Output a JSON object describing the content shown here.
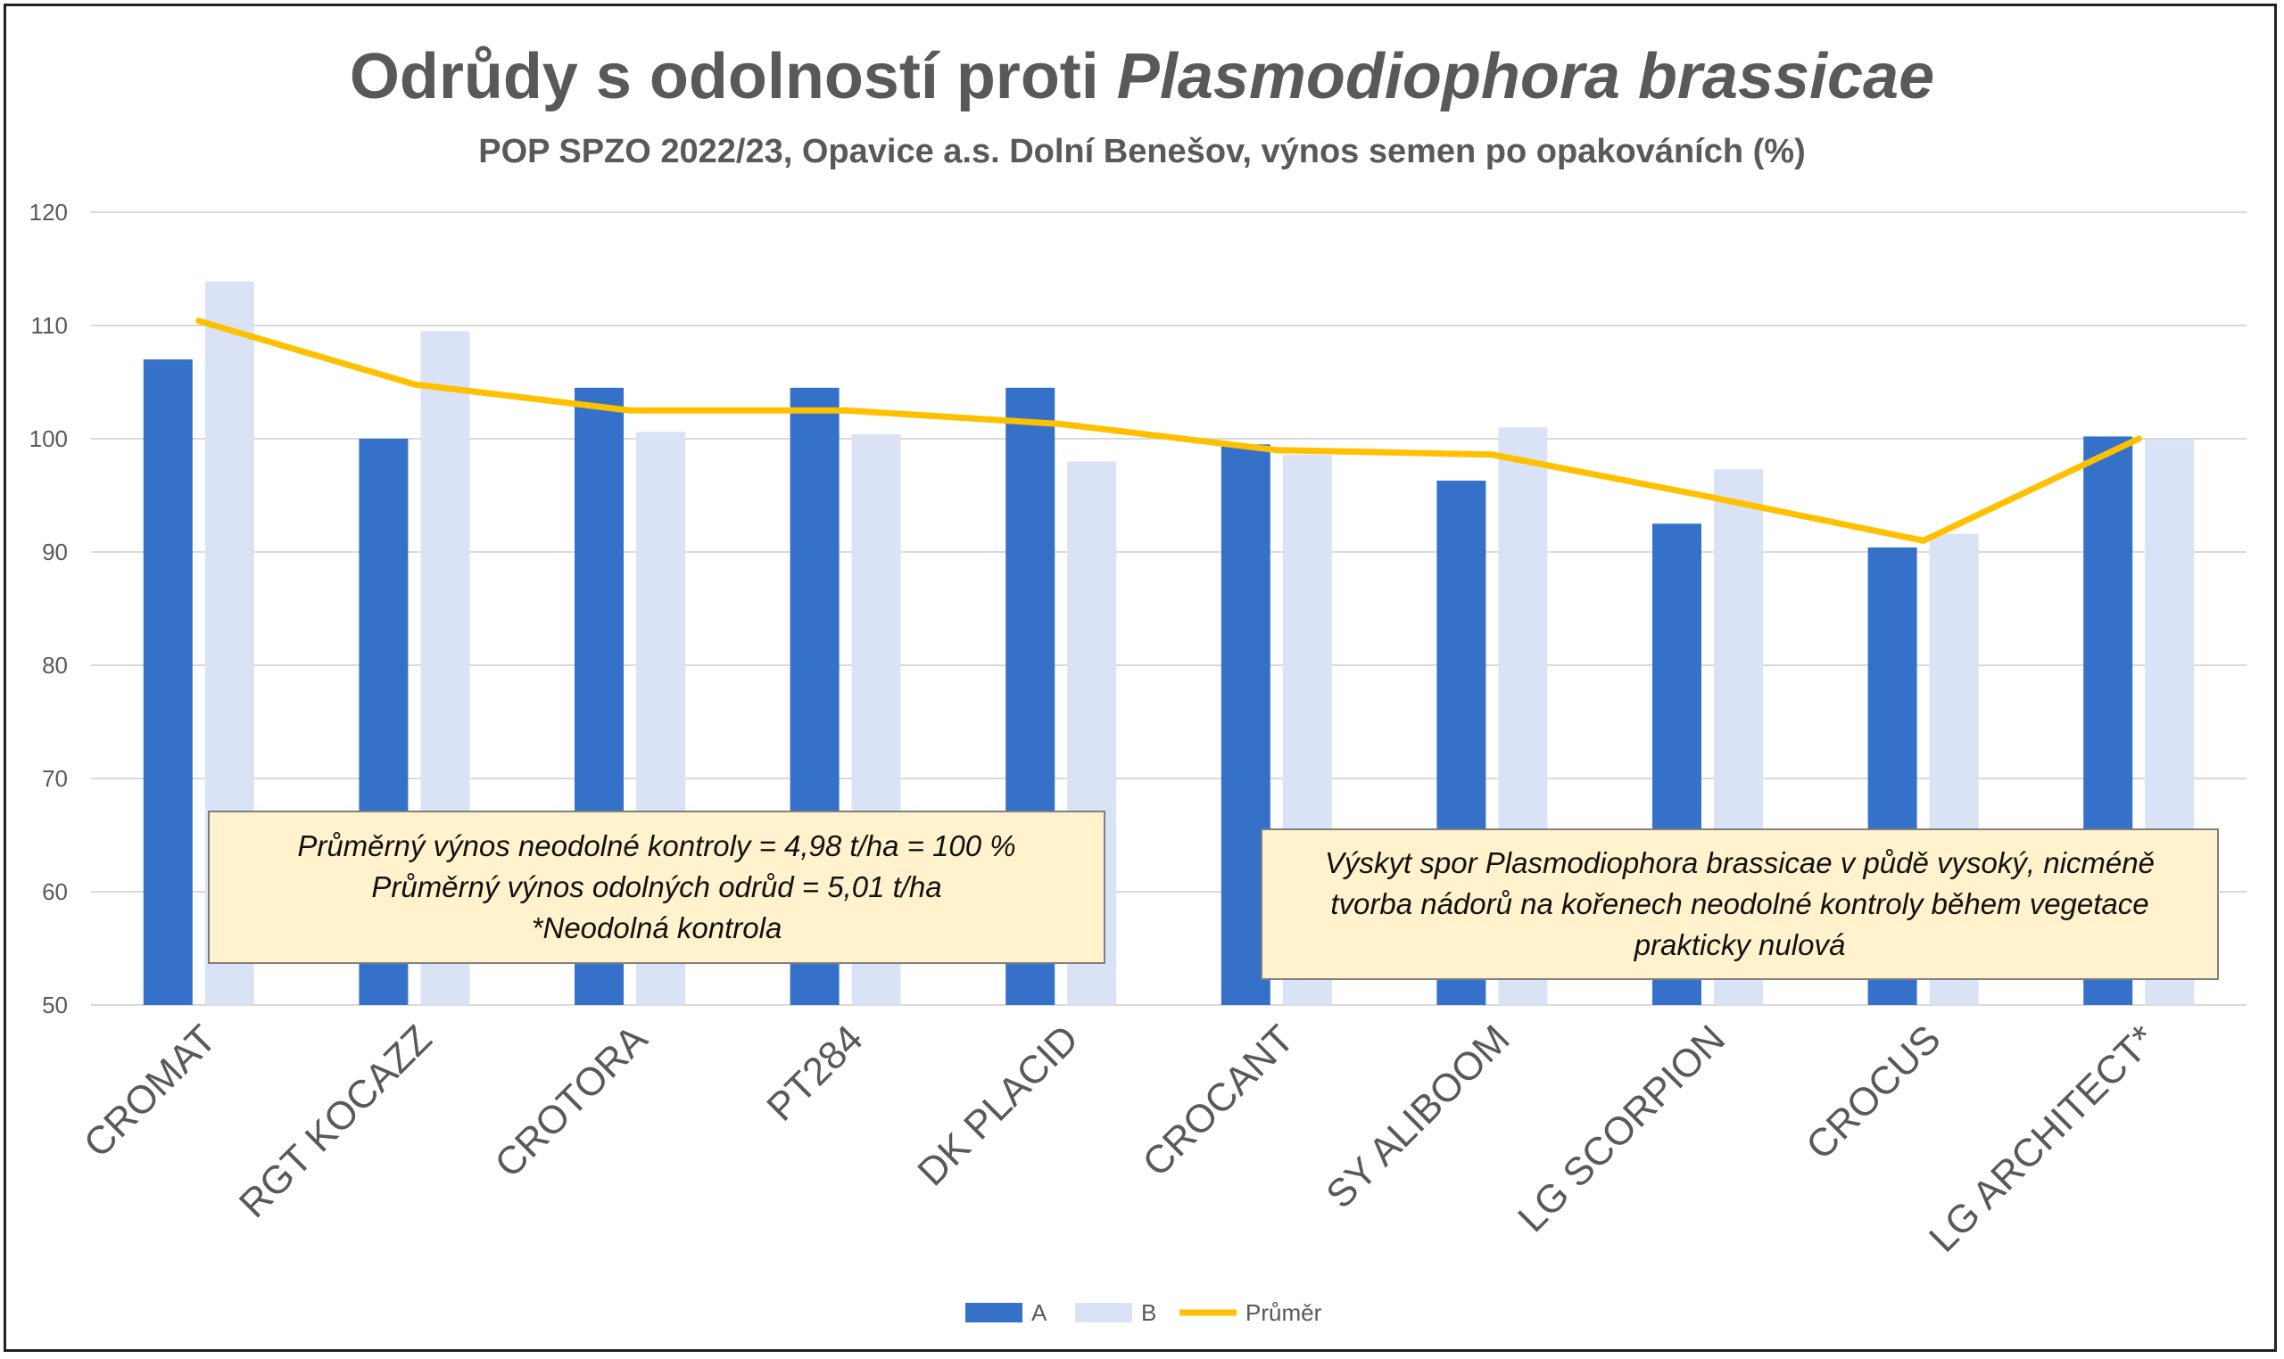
{
  "chart_data": {
    "type": "bar",
    "title_plain": "Odrůdy s odolností proti ",
    "title_italic": "Plasmodiophora brassicae",
    "subtitle": "POP SPZO 2022/23, Opavice a.s. Dolní Benešov, výnos semen po opakováních (%)",
    "categories": [
      "CROMAT",
      "RGT KOCAZZ",
      "CROTORA",
      "PT284",
      "DK PLACID",
      "CROCANT",
      "SY ALIBOOM",
      "LG SCORPION",
      "CROCUS",
      "LG ARCHITECT*"
    ],
    "series": [
      {
        "name": "A",
        "kind": "bar",
        "color": "#3571c9",
        "values": [
          107.0,
          100.0,
          104.5,
          104.5,
          104.5,
          99.5,
          96.3,
          92.5,
          90.4,
          100.2
        ]
      },
      {
        "name": "B",
        "kind": "bar",
        "color": "#d9e3f5",
        "values": [
          113.9,
          109.5,
          100.6,
          100.4,
          98.0,
          98.6,
          101.0,
          97.3,
          91.6,
          99.9
        ]
      },
      {
        "name": "Průměr",
        "kind": "line",
        "color": "#ffc000",
        "values": [
          110.4,
          104.8,
          102.5,
          102.5,
          101.3,
          99.0,
          98.6,
          94.9,
          91.0,
          100.0
        ]
      }
    ],
    "ylim": [
      50,
      120
    ],
    "yticks": [
      "50",
      "60",
      "70",
      "80",
      "90",
      "100",
      "110",
      "120"
    ],
    "grid": true,
    "legend_position": "bottom"
  },
  "annotations": {
    "left_box": [
      "Průměrný výnos neodolné kontroly = 4,98 t/ha = 100 %",
      "Průměrný výnos odolných odrůd = 5,01 t/ha",
      "*Neodolná kontrola"
    ],
    "right_box": [
      "Výskyt spor Plasmodiophora brassicae v půdě vysoký, nicméně",
      "tvorba nádorů na kořenech neodolné kontroly během vegetace",
      "prakticky nulová"
    ]
  }
}
